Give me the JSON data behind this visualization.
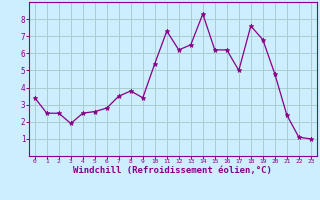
{
  "x": [
    0,
    1,
    2,
    3,
    4,
    5,
    6,
    7,
    8,
    9,
    10,
    11,
    12,
    13,
    14,
    15,
    16,
    17,
    18,
    19,
    20,
    21,
    22,
    23
  ],
  "y": [
    3.4,
    2.5,
    2.5,
    1.9,
    2.5,
    2.6,
    2.8,
    3.5,
    3.8,
    3.4,
    5.4,
    7.3,
    6.2,
    6.5,
    8.3,
    6.2,
    6.2,
    5.0,
    7.6,
    6.8,
    4.8,
    2.4,
    1.1,
    1.0
  ],
  "line_color": "#880088",
  "marker": "*",
  "marker_size": 3.5,
  "bg_color": "#cceeff",
  "grid_color": "#aacccc",
  "axis_color": "#880088",
  "tick_color": "#880088",
  "xlabel": "Windchill (Refroidissement éolien,°C)",
  "xlabel_fontsize": 6.5,
  "ylim": [
    0,
    9
  ],
  "xlim": [
    -0.5,
    23.5
  ],
  "yticks": [
    1,
    2,
    3,
    4,
    5,
    6,
    7,
    8
  ],
  "xticks": [
    0,
    1,
    2,
    3,
    4,
    5,
    6,
    7,
    8,
    9,
    10,
    11,
    12,
    13,
    14,
    15,
    16,
    17,
    18,
    19,
    20,
    21,
    22,
    23
  ]
}
